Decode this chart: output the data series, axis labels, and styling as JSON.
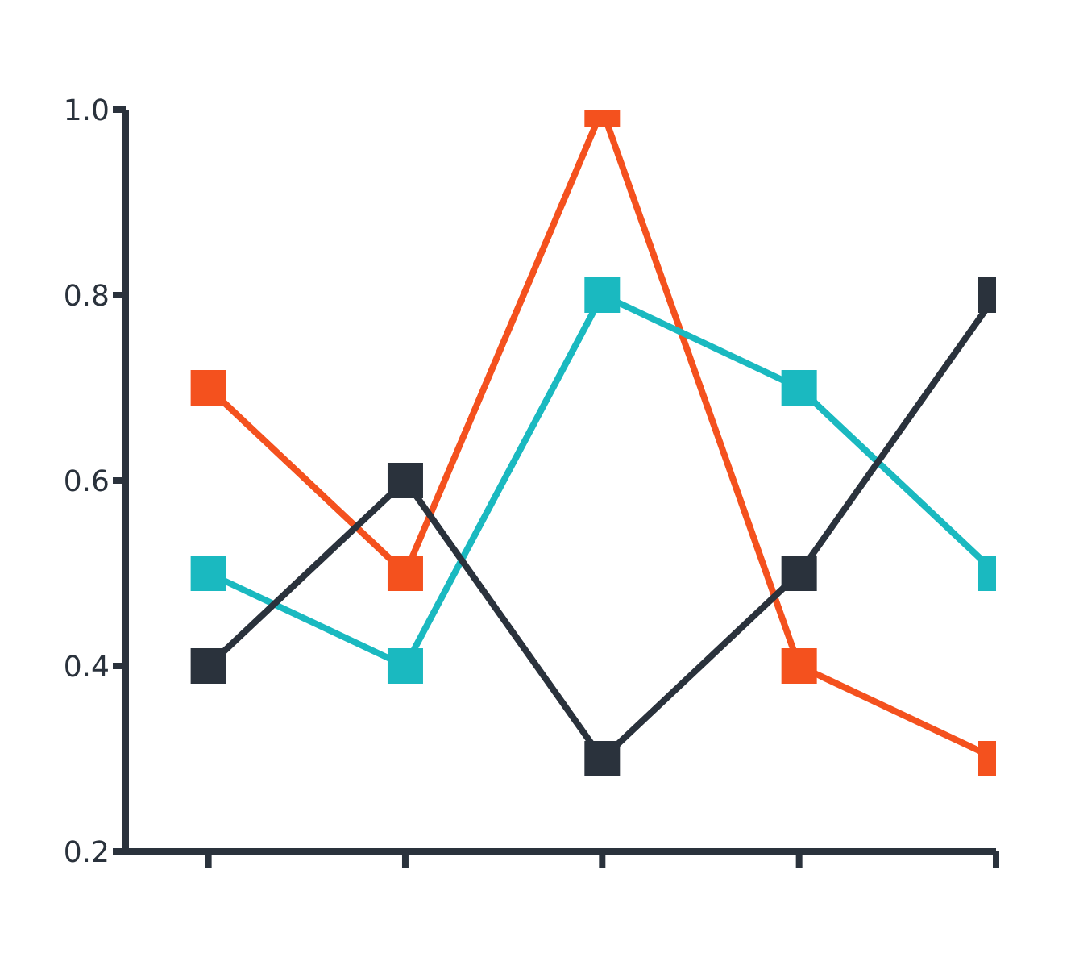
{
  "chart_data": {
    "type": "line",
    "categories": [
      null,
      null,
      null,
      null,
      null
    ],
    "series": [
      {
        "color": "#f4511e",
        "values": [
          0.7,
          0.5,
          1.0,
          0.4,
          0.3
        ]
      },
      {
        "color": "#1ab9c0",
        "values": [
          0.5,
          0.4,
          0.8,
          0.7,
          0.5
        ]
      },
      {
        "color": "#2a323c",
        "values": [
          0.4,
          0.6,
          0.3,
          0.5,
          0.8
        ]
      }
    ],
    "ylim": [
      0.2,
      1.0
    ],
    "yticks": [
      0.2,
      0.4,
      0.6,
      0.8,
      {
        "value": 1.0,
        "label": "1.0"
      }
    ],
    "grid": false,
    "legend": false,
    "marker": "square",
    "line_style": "solid"
  }
}
